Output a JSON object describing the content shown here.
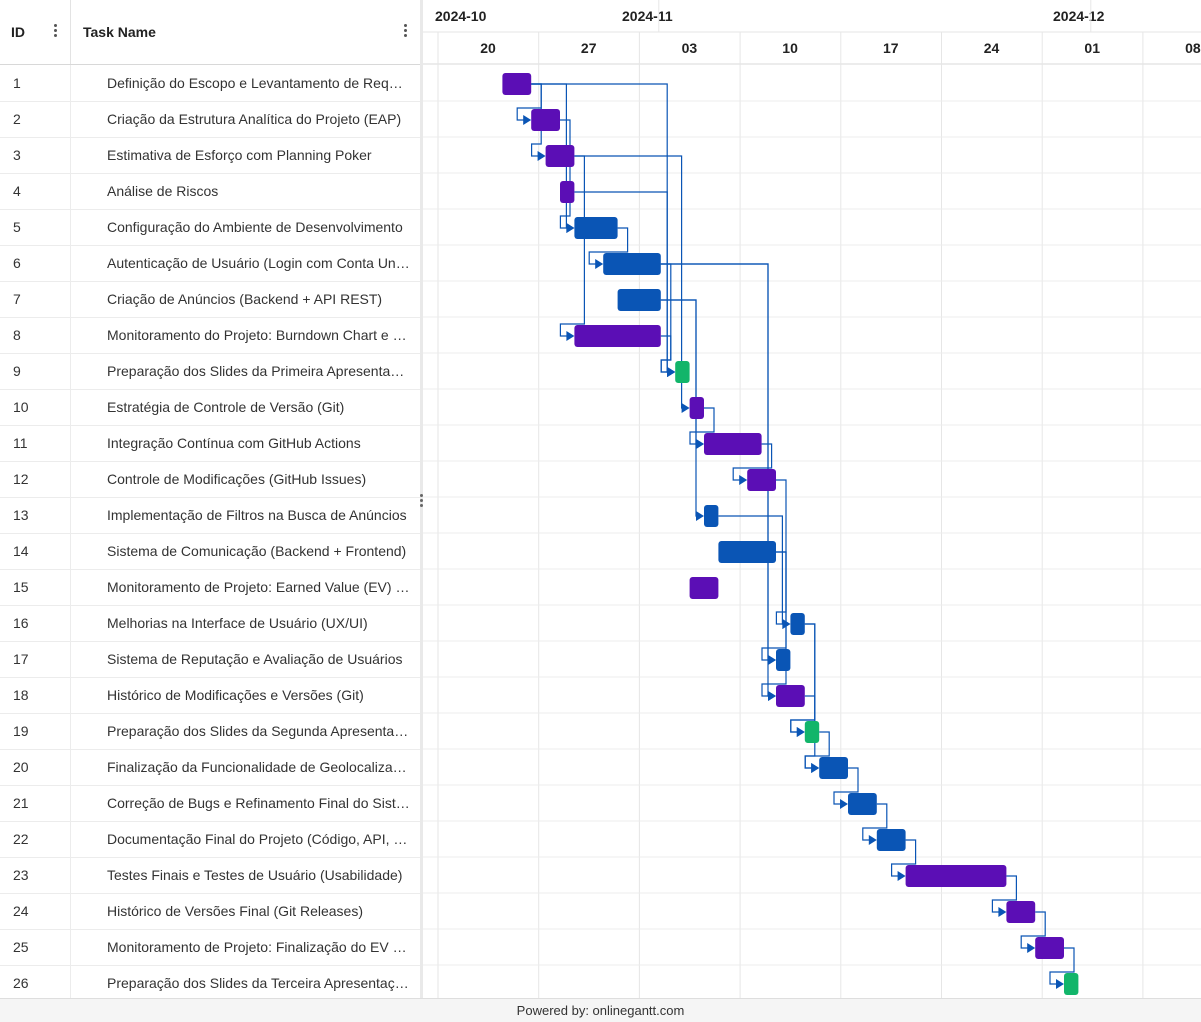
{
  "header": {
    "id_label": "ID",
    "name_label": "Task Name"
  },
  "timeline": {
    "months": [
      "2024-10",
      "2024-11",
      "2024-12"
    ],
    "weeks": [
      "20",
      "27",
      "03",
      "10",
      "17",
      "24",
      "01",
      "08"
    ]
  },
  "tasks": [
    {
      "id": "1",
      "name": "Definição do Escopo e Levantamento de Requisitos",
      "start": "2024-10-21",
      "end": "2024-10-23",
      "color": "#5B0EB5"
    },
    {
      "id": "2",
      "name": "Criação da Estrutura Analítica do Projeto (EAP)",
      "start": "2024-10-23",
      "end": "2024-10-25",
      "color": "#5B0EB5"
    },
    {
      "id": "3",
      "name": "Estimativa de Esforço com Planning Poker",
      "start": "2024-10-24",
      "end": "2024-10-26",
      "color": "#5B0EB5"
    },
    {
      "id": "4",
      "name": "Análise de Riscos",
      "start": "2024-10-25",
      "end": "2024-10-26",
      "color": "#5B0EB5"
    },
    {
      "id": "5",
      "name": "Configuração do Ambiente de Desenvolvimento",
      "start": "2024-10-26",
      "end": "2024-10-29",
      "color": "#0A55B5"
    },
    {
      "id": "6",
      "name": "Autenticação de Usuário (Login com Conta Universitária)",
      "start": "2024-10-28",
      "end": "2024-11-01",
      "color": "#0A55B5"
    },
    {
      "id": "7",
      "name": "Criação de Anúncios (Backend + API REST)",
      "start": "2024-10-29",
      "end": "2024-11-01",
      "color": "#0A55B5"
    },
    {
      "id": "8",
      "name": "Monitoramento do Projeto: Burndown Chart e Velocity",
      "start": "2024-10-26",
      "end": "2024-11-01",
      "color": "#5B0EB5"
    },
    {
      "id": "9",
      "name": "Preparação dos Slides da Primeira Apresentação",
      "start": "2024-11-02",
      "end": "2024-11-03",
      "color": "#12B56A"
    },
    {
      "id": "10",
      "name": "Estratégia de Controle de Versão (Git)",
      "start": "2024-11-03",
      "end": "2024-11-04",
      "color": "#5B0EB5"
    },
    {
      "id": "11",
      "name": "Integração Contínua com GitHub Actions",
      "start": "2024-11-04",
      "end": "2024-11-08",
      "color": "#5B0EB5"
    },
    {
      "id": "12",
      "name": "Controle de Modificações (GitHub Issues)",
      "start": "2024-11-07",
      "end": "2024-11-09",
      "color": "#5B0EB5"
    },
    {
      "id": "13",
      "name": "Implementação de Filtros na Busca de Anúncios",
      "start": "2024-11-04",
      "end": "2024-11-05",
      "color": "#0A55B5"
    },
    {
      "id": "14",
      "name": "Sistema de Comunicação (Backend + Frontend)",
      "start": "2024-11-05",
      "end": "2024-11-09",
      "color": "#0A55B5"
    },
    {
      "id": "15",
      "name": "Monitoramento de Projeto: Earned Value (EV) e Custos",
      "start": "2024-11-03",
      "end": "2024-11-05",
      "color": "#5B0EB5"
    },
    {
      "id": "16",
      "name": "Melhorias na Interface de Usuário (UX/UI)",
      "start": "2024-11-10",
      "end": "2024-11-11",
      "color": "#0A55B5"
    },
    {
      "id": "17",
      "name": "Sistema de Reputação e Avaliação de Usuários",
      "start": "2024-11-09",
      "end": "2024-11-10",
      "color": "#0A55B5"
    },
    {
      "id": "18",
      "name": "Histórico de Modificações e Versões (Git)",
      "start": "2024-11-09",
      "end": "2024-11-11",
      "color": "#5B0EB5"
    },
    {
      "id": "19",
      "name": "Preparação dos Slides da Segunda Apresentação",
      "start": "2024-11-11",
      "end": "2024-11-12",
      "color": "#12B56A"
    },
    {
      "id": "20",
      "name": "Finalização da Funcionalidade de Geolocalização",
      "start": "2024-11-12",
      "end": "2024-11-14",
      "color": "#0A55B5"
    },
    {
      "id": "21",
      "name": "Correção de Bugs e Refinamento Final do Sistema",
      "start": "2024-11-14",
      "end": "2024-11-16",
      "color": "#0A55B5"
    },
    {
      "id": "22",
      "name": "Documentação Final do Projeto (Código, API, Usuário)",
      "start": "2024-11-16",
      "end": "2024-11-18",
      "color": "#0A55B5"
    },
    {
      "id": "23",
      "name": "Testes Finais e Testes de Usuário (Usabilidade)",
      "start": "2024-11-18",
      "end": "2024-11-25",
      "color": "#5B0EB5"
    },
    {
      "id": "24",
      "name": "Histórico de Versões Final (Git Releases)",
      "start": "2024-11-25",
      "end": "2024-11-27",
      "color": "#5B0EB5"
    },
    {
      "id": "25",
      "name": "Monitoramento de Projeto: Finalização do EV e Custos",
      "start": "2024-11-27",
      "end": "2024-11-29",
      "color": "#5B0EB5"
    },
    {
      "id": "26",
      "name": "Preparação dos Slides da Terceira Apresentação",
      "start": "2024-11-29",
      "end": "2024-11-30",
      "color": "#12B56A"
    }
  ],
  "dependencies": [
    [
      1,
      2
    ],
    [
      1,
      3
    ],
    [
      1,
      5
    ],
    [
      1,
      9
    ],
    [
      2,
      5
    ],
    [
      3,
      8
    ],
    [
      3,
      10
    ],
    [
      4,
      9
    ],
    [
      5,
      6
    ],
    [
      6,
      9
    ],
    [
      6,
      17
    ],
    [
      6,
      18
    ],
    [
      7,
      11
    ],
    [
      8,
      9
    ],
    [
      7,
      13
    ],
    [
      10,
      11
    ],
    [
      11,
      12
    ],
    [
      12,
      16
    ],
    [
      13,
      16
    ],
    [
      14,
      17
    ],
    [
      14,
      18
    ],
    [
      16,
      19
    ],
    [
      18,
      19
    ],
    [
      16,
      20
    ],
    [
      19,
      20
    ],
    [
      20,
      21
    ],
    [
      21,
      22
    ],
    [
      22,
      23
    ],
    [
      23,
      24
    ],
    [
      24,
      25
    ],
    [
      25,
      26
    ]
  ],
  "footer": {
    "text": "Powered by: onlinegantt.com"
  },
  "colors": {
    "grid": "#e6e6e6",
    "link": "#0A55B5"
  }
}
